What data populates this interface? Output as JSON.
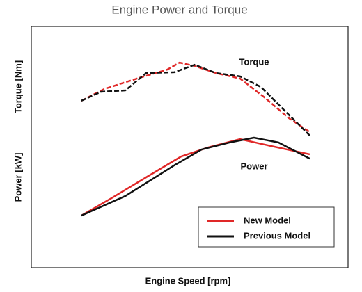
{
  "chart_data": {
    "type": "line",
    "title": "Engine Power and Torque",
    "x_label": "Engine Speed [rpm]",
    "y_labels": [
      "Torque [Nm]",
      "Power [kW]"
    ],
    "annotations": [
      "Torque",
      "Power"
    ],
    "xlim": [
      0,
      100
    ],
    "ylim": [
      0,
      100
    ],
    "grid": false,
    "legend": "lower right",
    "series": [
      {
        "name": "New Model",
        "color": "#e02828",
        "dashed": true,
        "x": [
          15.8,
          23.1,
          34.1,
          42.9,
          46.8,
          51.6,
          58.2,
          65.9,
          73.6,
          81.3,
          87.9
        ],
        "values": [
          69.2,
          74.1,
          78.7,
          82.1,
          85.0,
          83.6,
          80.7,
          78.4,
          70.6,
          62.0,
          56.2
        ]
      },
      {
        "name": "Previous Model",
        "color": "#111111",
        "dashed": true,
        "x": [
          15.8,
          22.0,
          29.7,
          36.3,
          45.1,
          51.6,
          58.2,
          65.9,
          72.5,
          80.2,
          87.9
        ],
        "values": [
          69.2,
          72.9,
          73.5,
          80.7,
          81.0,
          84.1,
          80.7,
          79.3,
          74.9,
          64.8,
          54.8
        ]
      },
      {
        "name": "New Model",
        "color": "#e02828",
        "dashed": false,
        "x": [
          15.8,
          25.3,
          36.3,
          47.3,
          56.0,
          65.9,
          75.8,
          87.9
        ],
        "values": [
          21.6,
          28.8,
          37.5,
          46.1,
          49.9,
          53.3,
          50.4,
          47.0
        ]
      },
      {
        "name": "Previous Model",
        "color": "#111111",
        "dashed": false,
        "x": [
          15.8,
          29.7,
          45.1,
          53.8,
          62.6,
          70.3,
          78.0,
          87.9
        ],
        "values": [
          21.6,
          29.7,
          42.4,
          49.0,
          51.9,
          53.9,
          51.9,
          45.2
        ]
      }
    ]
  }
}
